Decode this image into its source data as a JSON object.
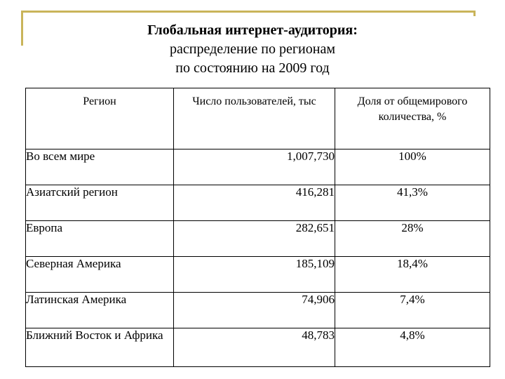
{
  "title": {
    "line1": "Глобальная интернет-аудитория:",
    "line2": "распределение по регионам",
    "line3": "по состоянию на 2009 год"
  },
  "table": {
    "headers": [
      "Регион",
      "Число пользователей, тыс",
      "Доля от общемирового количества, %"
    ],
    "rows": [
      {
        "region": "Во всем мире",
        "users": "1,007,730",
        "share": "100%"
      },
      {
        "region": "Азиатский регион",
        "users": "416,281",
        "share": "41,3%"
      },
      {
        "region": "Европа",
        "users": "282,651",
        "share": "28%"
      },
      {
        "region": "Северная Америка",
        "users": "185,109",
        "share": "18,4%"
      },
      {
        "region": "Латинская Америка",
        "users": "74,906",
        "share": "7,4%"
      },
      {
        "region": "Ближний Восток и Африка",
        "users": "48,783",
        "share": "4,8%"
      }
    ]
  },
  "colors": {
    "frame": "#c9b45a"
  }
}
